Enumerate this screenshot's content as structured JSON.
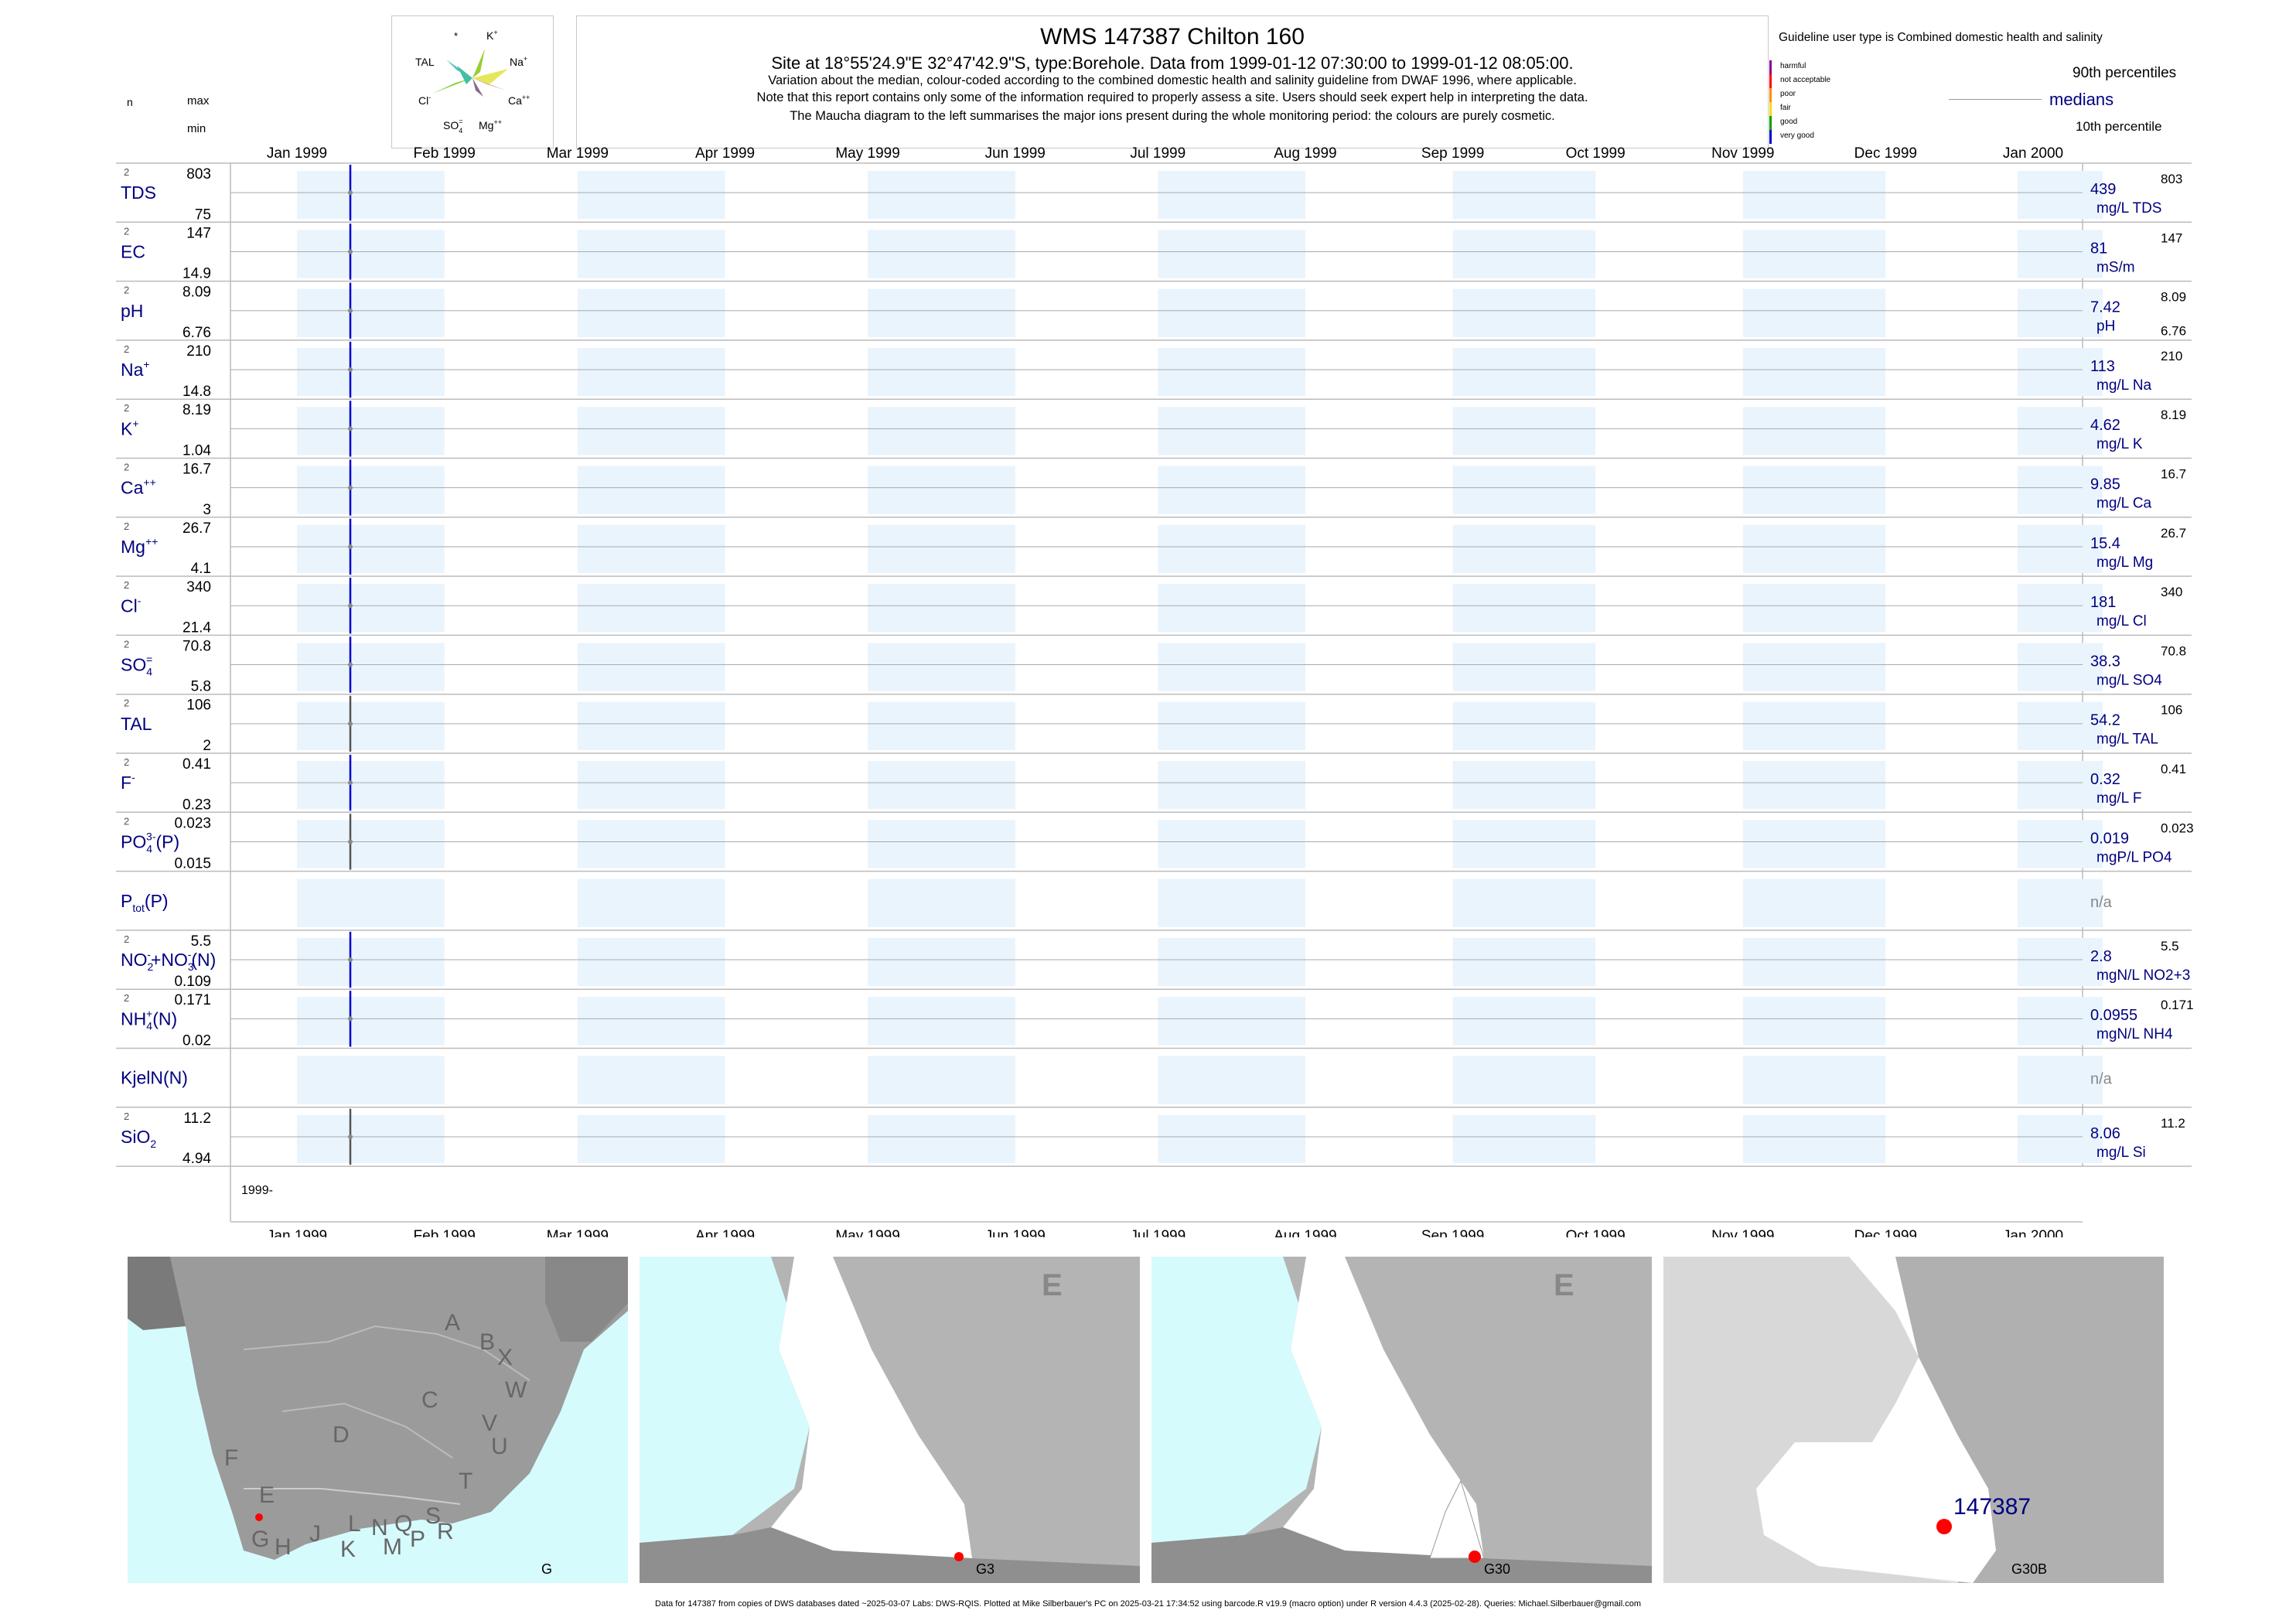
{
  "header": {
    "title": "WMS 147387  Chilton 160",
    "subtitle": "Site at 18°55'24.9\"E 32°47'42.9\"S, type:Borehole.  Data from 1999-01-12 07:30:00 to 1999-01-12 08:05:00.",
    "note1": "Variation about the median,  colour-coded according to the combined domestic health and salinity guideline from DWAF 1996, where applicable.",
    "note2": "Note that this report contains only some of the information required to properly assess a site. Users should seek expert help in interpreting the data.",
    "note3": "The Maucha diagram to the left summarises the major ions present during the whole monitoring period: the colours are purely cosmetic."
  },
  "maucha": {
    "labels": {
      "star": "*",
      "k": "K",
      "k_sup": "+",
      "tal": "TAL",
      "na": "Na",
      "na_sup": "+",
      "cl": "Cl",
      "cl_sup": "-",
      "ca": "Ca",
      "ca_sup": "++",
      "so4": "SO",
      "so4_sub": "4",
      "so4_sup": "=",
      "mg": "Mg",
      "mg_sup": "++"
    }
  },
  "guideline": {
    "title": "Guideline user type is Combined domestic health and salinity",
    "levels": [
      {
        "label": "harmful",
        "color": "#8b008b"
      },
      {
        "label": "not acceptable",
        "color": "#ff0000"
      },
      {
        "label": "poor",
        "color": "#ff8c00"
      },
      {
        "label": "fair",
        "color": "#ffd700"
      },
      {
        "label": "good",
        "color": "#00a000"
      },
      {
        "label": "very good",
        "color": "#0000cd"
      }
    ],
    "p90": "90th percentiles",
    "medians": "medians",
    "p10": "10th percentile"
  },
  "left_header": {
    "n": "n",
    "max": "max",
    "min": "min"
  },
  "months_top": [
    "Jan 1999",
    "Feb 1999",
    "Mar 1999",
    "Apr 1999",
    "May 1999",
    "Jun 1999",
    "Jul 1999",
    "Aug 1999",
    "Sep 1999",
    "Oct 1999",
    "Nov 1999",
    "Dec 1999",
    "Jan 2000"
  ],
  "bottom_year_label": "1999-",
  "chart_data": {
    "type": "line",
    "x_axis": {
      "label": "",
      "ticks": [
        "Jan 1999",
        "Feb 1999",
        "Mar 1999",
        "Apr 1999",
        "May 1999",
        "Jun 1999",
        "Jul 1999",
        "Aug 1999",
        "Sep 1999",
        "Oct 1999",
        "Nov 1999",
        "Dec 1999",
        "Jan 2000"
      ],
      "range": [
        "1999-01-01",
        "2000-01-01"
      ]
    },
    "sample_date": "1999-01-12",
    "series": [
      {
        "name": "TDS",
        "sup": "",
        "sub": "",
        "n": "2",
        "max": "803",
        "min": "75",
        "median": "439",
        "unit": "mg/L TDS",
        "right_max": "803",
        "right_min": "",
        "has_data": true,
        "line_color": "#0000cd"
      },
      {
        "name": "EC",
        "sup": "",
        "sub": "",
        "n": "2",
        "max": "147",
        "min": "14.9",
        "median": "81",
        "unit": "mS/m",
        "right_max": "147",
        "right_min": "",
        "has_data": true,
        "line_color": "#0000cd"
      },
      {
        "name": "pH",
        "sup": "",
        "sub": "",
        "n": "2",
        "max": "8.09",
        "min": "6.76",
        "median": "7.42",
        "unit": "pH",
        "right_max": "8.09",
        "right_min": "6.76",
        "has_data": true,
        "line_color": "#0000cd"
      },
      {
        "name": "Na",
        "sup": "+",
        "sub": "",
        "n": "2",
        "max": "210",
        "min": "14.8",
        "median": "113",
        "unit": "mg/L Na",
        "right_max": "210",
        "right_min": "",
        "has_data": true,
        "line_color": "#0000cd"
      },
      {
        "name": "K",
        "sup": "+",
        "sub": "",
        "n": "2",
        "max": "8.19",
        "min": "1.04",
        "median": "4.62",
        "unit": "mg/L K",
        "right_max": "8.19",
        "right_min": "",
        "has_data": true,
        "line_color": "#0000cd"
      },
      {
        "name": "Ca",
        "sup": "++",
        "sub": "",
        "n": "2",
        "max": "16.7",
        "min": "3",
        "median": "9.85",
        "unit": "mg/L Ca",
        "right_max": "16.7",
        "right_min": "",
        "has_data": true,
        "line_color": "#0000cd"
      },
      {
        "name": "Mg",
        "sup": "++",
        "sub": "",
        "n": "2",
        "max": "26.7",
        "min": "4.1",
        "median": "15.4",
        "unit": "mg/L Mg",
        "right_max": "26.7",
        "right_min": "",
        "has_data": true,
        "line_color": "#0000cd"
      },
      {
        "name": "Cl",
        "sup": "-",
        "sub": "",
        "n": "2",
        "max": "340",
        "min": "21.4",
        "median": "181",
        "unit": "mg/L Cl",
        "right_max": "340",
        "right_min": "",
        "has_data": true,
        "line_color": "#0000cd"
      },
      {
        "name": "SO",
        "sup": "=",
        "sub": "4",
        "n": "2",
        "max": "70.8",
        "min": "5.8",
        "median": "38.3",
        "unit": "mg/L SO4",
        "right_max": "70.8",
        "right_min": "",
        "has_data": true,
        "line_color": "#0000cd"
      },
      {
        "name": "TAL",
        "sup": "",
        "sub": "",
        "n": "2",
        "max": "106",
        "min": "2",
        "median": "54.2",
        "unit": "mg/L TAL",
        "right_max": "106",
        "right_min": "",
        "has_data": true,
        "line_color": "#555555"
      },
      {
        "name": "F",
        "sup": "-",
        "sub": "",
        "n": "2",
        "max": "0.41",
        "min": "0.23",
        "median": "0.32",
        "unit": "mg/L F",
        "right_max": "0.41",
        "right_min": "",
        "has_data": true,
        "line_color": "#0000cd"
      },
      {
        "name": "PO",
        "sup": "3-",
        "sub": "4",
        "suffix": "(P)",
        "n": "2",
        "max": "0.023",
        "min": "0.015",
        "median": "0.019",
        "unit": "mgP/L PO4",
        "right_max": "0.023",
        "right_min": "",
        "has_data": true,
        "line_color": "#555555"
      },
      {
        "name": "P",
        "sup": "",
        "sub": "tot",
        "suffix": "(P)",
        "n": "",
        "max": "",
        "min": "",
        "median": "n/a",
        "unit": "",
        "right_max": "",
        "right_min": "",
        "has_data": false,
        "line_color": "#555555"
      },
      {
        "name": "NO",
        "sup": "-",
        "sub": "2",
        "suffix": "+NO",
        "suffix_sup": "-",
        "suffix_sub": "3",
        "suffix2": "(N)",
        "n": "2",
        "max": "5.5",
        "min": "0.109",
        "median": "2.8",
        "unit": "mgN/L NO2+3",
        "right_max": "5.5",
        "right_min": "",
        "has_data": true,
        "line_color": "#0000cd"
      },
      {
        "name": "NH",
        "sup": "+",
        "sub": "4",
        "suffix": "(N)",
        "n": "2",
        "max": "0.171",
        "min": "0.02",
        "median": "0.0955",
        "unit": "mgN/L NH4",
        "right_max": "0.171",
        "right_min": "",
        "has_data": true,
        "line_color": "#0000cd"
      },
      {
        "name": "KjelN(N)",
        "sup": "",
        "sub": "",
        "n": "",
        "max": "",
        "min": "",
        "median": "n/a",
        "unit": "",
        "right_max": "",
        "right_min": "",
        "has_data": false,
        "line_color": "#555555"
      },
      {
        "name": "SiO",
        "sup": "",
        "sub": "2",
        "n": "2",
        "max": "11.2",
        "min": "4.94",
        "median": "8.06",
        "unit": "mg/L Si",
        "right_max": "11.2",
        "right_min": "",
        "has_data": true,
        "line_color": "#555555"
      }
    ]
  },
  "maps": {
    "map1": {
      "label": "G",
      "regions": [
        "A",
        "B",
        "X",
        "W",
        "C",
        "D",
        "V",
        "U",
        "T",
        "F",
        "E",
        "G",
        "H",
        "J",
        "K",
        "L",
        "N",
        "M",
        "Q",
        "P",
        "S",
        "R"
      ]
    },
    "map2": {
      "region_letter": "E",
      "label": "G3"
    },
    "map3": {
      "region_letter": "E",
      "label": "G30"
    },
    "map4": {
      "site_label": "147387",
      "label": "G30B"
    }
  },
  "footer": "Data for 147387 from copies of DWS databases dated ~2025-03-07 Labs: DWS-RQIS. Plotted at Mike Silberbauer's PC on 2025-03-21 17:34:52 using barcode.R v19.9 (macro option) under R version 4.4.3 (2025-02-28). Queries: Michael.Silberbauer@gmail.com"
}
